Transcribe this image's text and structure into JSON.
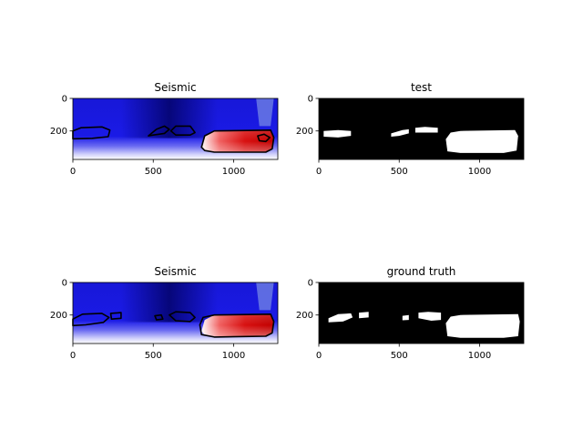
{
  "figure": {
    "panels": [
      {
        "title": "Seismic",
        "kind": "seismic",
        "variant": "pred"
      },
      {
        "title": "test",
        "kind": "mask",
        "variant": "pred"
      },
      {
        "title": "Seismic",
        "kind": "seismic",
        "variant": "truth"
      },
      {
        "title": "ground truth",
        "kind": "mask",
        "variant": "truth"
      }
    ]
  },
  "chart_data": [
    {
      "type": "heatmap",
      "title": "Seismic",
      "xlim": [
        0,
        1275
      ],
      "ylim": [
        375,
        0
      ],
      "xticks": [
        0,
        500,
        1000
      ],
      "yticks": [
        0,
        200
      ],
      "colormap": "seismic",
      "overlay": "contour of predicted mask"
    },
    {
      "type": "heatmap",
      "title": "test",
      "xlim": [
        0,
        1275
      ],
      "ylim": [
        375,
        0
      ],
      "xticks": [
        0,
        500,
        1000
      ],
      "yticks": [
        0,
        200
      ],
      "colormap": "binary mask (black/white)"
    },
    {
      "type": "heatmap",
      "title": "Seismic",
      "xlim": [
        0,
        1275
      ],
      "ylim": [
        375,
        0
      ],
      "xticks": [
        0,
        500,
        1000
      ],
      "yticks": [
        0,
        200
      ],
      "colormap": "seismic",
      "overlay": "contour of ground truth mask"
    },
    {
      "type": "heatmap",
      "title": "ground truth",
      "xlim": [
        0,
        1275
      ],
      "ylim": [
        375,
        0
      ],
      "xticks": [
        0,
        500,
        1000
      ],
      "yticks": [
        0,
        200
      ],
      "colormap": "binary mask (black/white)"
    }
  ]
}
